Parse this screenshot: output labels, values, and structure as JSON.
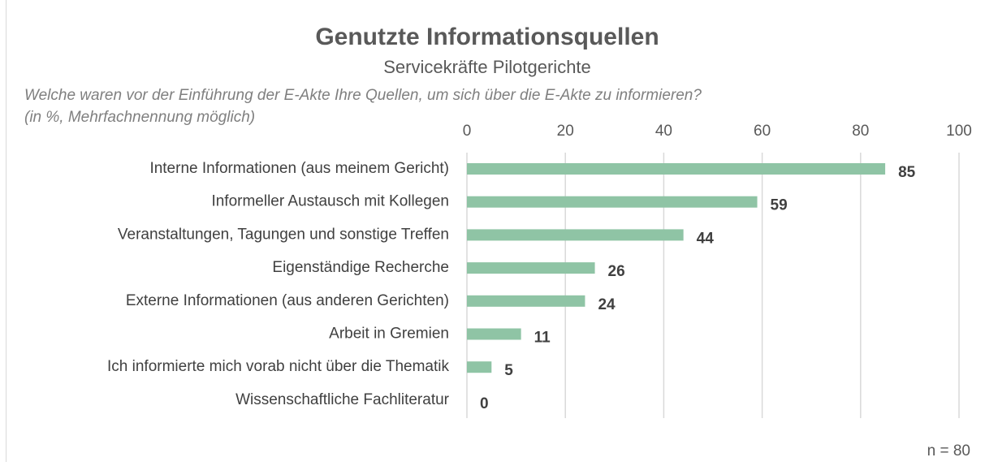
{
  "chart_data": {
    "type": "bar",
    "orientation": "horizontal",
    "title": "Genutzte Informationsquellen",
    "subtitle": "Servicekräfte Pilotgerichte",
    "question": [
      "Welche waren vor der Einführung der E-Akte Ihre Quellen, um sich über die E-Akte zu informieren?",
      "(in %, Mehrfachnennung möglich)"
    ],
    "note": "n = 80",
    "categories": [
      "Interne Informationen (aus meinem Gericht)",
      "Informeller Austausch mit Kollegen",
      "Veranstaltungen, Tagungen und sonstige Treffen",
      "Eigenständige Recherche",
      "Externe Informationen (aus anderen Gerichten)",
      "Arbeit in Gremien",
      "Ich informierte mich vorab nicht über die Thematik",
      "Wissenschaftliche Fachliteratur"
    ],
    "values": [
      85,
      59,
      44,
      26,
      24,
      11,
      5,
      0
    ],
    "color": "#8fc4a5",
    "xlim": [
      0,
      100
    ],
    "xticks": [
      0,
      20,
      40,
      60,
      80,
      100
    ],
    "grid": true
  }
}
